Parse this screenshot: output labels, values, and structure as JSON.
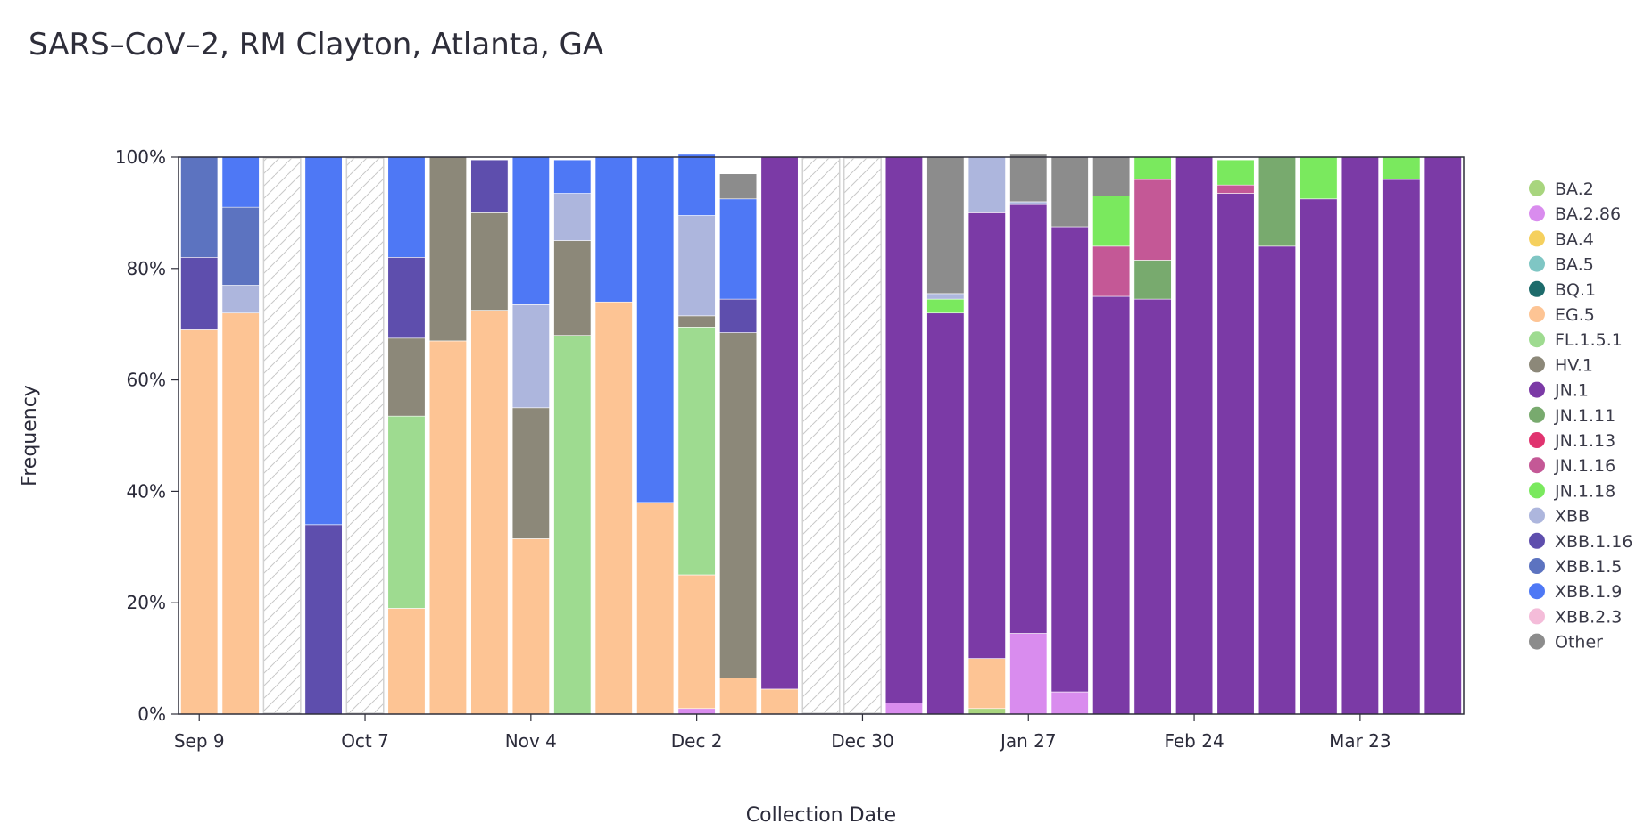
{
  "chart_data": {
    "type": "bar",
    "stacked": true,
    "normalized": true,
    "title": "SARS–CoV–2, RM Clayton, Atlanta, GA",
    "xlabel": "Collection Date",
    "ylabel": "Frequency",
    "ylim": [
      0,
      100
    ],
    "y_ticks": [
      "0%",
      "20%",
      "40%",
      "60%",
      "80%",
      "100%"
    ],
    "x_ticks": [
      "Sep 9",
      "Oct 7",
      "Nov 4",
      "Dec 2",
      "Dec 30",
      "Jan 27",
      "Feb 24",
      "Mar 23"
    ],
    "legend_position": "right",
    "grid": false,
    "categories": [
      "Sep 9",
      "Sep 16",
      "Sep 23",
      "Sep 30",
      "Oct 7",
      "Oct 14",
      "Oct 21",
      "Oct 28",
      "Nov 4",
      "Nov 11",
      "Nov 18",
      "Nov 25",
      "Dec 2",
      "Dec 9",
      "Dec 16",
      "Dec 23",
      "Dec 30",
      "Jan 6",
      "Jan 13",
      "Jan 20",
      "Jan 27",
      "Feb 3",
      "Feb 10",
      "Feb 17",
      "Feb 24",
      "Mar 2",
      "Mar 9",
      "Mar 16",
      "Mar 23",
      "Mar 30",
      "Apr 6"
    ],
    "missing_weeks": [
      "Sep 23",
      "Oct 7",
      "Dec 23",
      "Dec 30"
    ],
    "series": [
      {
        "name": "BA.2",
        "color": "#a8d57e",
        "values": [
          0,
          0,
          0,
          0,
          0,
          0,
          0,
          0,
          0,
          0,
          0,
          0,
          0,
          0,
          0,
          0,
          0,
          0,
          0,
          1,
          0,
          0,
          0,
          0,
          0,
          0,
          0,
          0,
          0,
          0,
          0
        ]
      },
      {
        "name": "BA.2.86",
        "color": "#d98cee",
        "values": [
          0,
          0,
          0,
          0,
          0,
          0,
          0,
          0,
          0,
          0,
          0,
          0,
          1,
          0,
          0,
          0,
          0,
          2,
          0,
          0,
          14.5,
          4,
          0,
          0,
          0,
          0,
          0,
          0,
          0,
          0,
          0
        ]
      },
      {
        "name": "BA.4",
        "color": "#f5d05e",
        "values": [
          0,
          0,
          0,
          0,
          0,
          0,
          0,
          0,
          0,
          0,
          0,
          0,
          0,
          0,
          0,
          0,
          0,
          0,
          0,
          0,
          0,
          0,
          0,
          0,
          0,
          0,
          0,
          0,
          0,
          0,
          0
        ]
      },
      {
        "name": "BA.5",
        "color": "#7fc6c4",
        "values": [
          0,
          0,
          0,
          0,
          0,
          0,
          0,
          0,
          0,
          0,
          0,
          0,
          0,
          0,
          0,
          0,
          0,
          0,
          0,
          0,
          0,
          0,
          0,
          0,
          0,
          0,
          0,
          0,
          0,
          0,
          0
        ]
      },
      {
        "name": "BQ.1",
        "color": "#1d6b6b",
        "values": [
          0,
          0,
          0,
          0,
          0,
          0,
          0,
          0,
          0,
          0,
          0,
          0,
          0,
          0,
          0,
          0,
          0,
          0,
          0,
          0,
          0,
          0,
          0,
          0,
          0,
          0,
          0,
          0,
          0,
          0,
          0
        ]
      },
      {
        "name": "EG.5",
        "color": "#fdc494",
        "values": [
          69,
          72,
          0,
          0,
          0,
          19,
          67,
          72.5,
          31.5,
          0,
          74,
          38,
          24,
          6.5,
          4.5,
          0,
          0,
          0,
          0,
          9,
          0,
          0,
          0,
          0,
          0,
          0,
          0,
          0,
          0,
          0,
          0
        ]
      },
      {
        "name": "FL.1.5.1",
        "color": "#9edb90",
        "values": [
          0,
          0,
          0,
          0,
          0,
          34.5,
          0,
          0,
          0,
          68,
          0,
          0,
          44.5,
          0,
          0,
          0,
          0,
          0,
          0,
          0,
          0,
          0,
          0,
          0,
          0,
          0,
          0,
          0,
          0,
          0,
          0
        ]
      },
      {
        "name": "HV.1",
        "color": "#8c8879",
        "values": [
          0,
          0,
          0,
          0,
          0,
          14,
          33,
          17.5,
          23.5,
          17,
          0,
          0,
          2,
          62,
          0,
          0,
          0,
          0,
          0,
          0,
          0,
          0,
          0,
          0,
          0,
          0,
          0,
          0,
          0,
          0,
          0
        ]
      },
      {
        "name": "JN.1",
        "color": "#7b3aa6",
        "values": [
          0,
          0,
          0,
          0,
          0,
          0,
          0,
          0,
          0,
          0,
          0,
          0,
          0,
          0,
          95.5,
          0,
          0,
          98,
          72,
          80,
          77,
          83.5,
          75,
          74.5,
          100,
          93.5,
          84,
          92.5,
          100,
          96,
          100
        ]
      },
      {
        "name": "JN.1.11",
        "color": "#78aa6e",
        "values": [
          0,
          0,
          0,
          0,
          0,
          0,
          0,
          0,
          0,
          0,
          0,
          0,
          0,
          0,
          0,
          0,
          0,
          0,
          0,
          0,
          0,
          0,
          0,
          7,
          0,
          0,
          16,
          0,
          0,
          0,
          0
        ]
      },
      {
        "name": "JN.1.13",
        "color": "#e0336f",
        "values": [
          0,
          0,
          0,
          0,
          0,
          0,
          0,
          0,
          0,
          0,
          0,
          0,
          0,
          0,
          0,
          0,
          0,
          0,
          0,
          0,
          0,
          0,
          0,
          0,
          0,
          0,
          0,
          0,
          0,
          0,
          0
        ]
      },
      {
        "name": "JN.1.16",
        "color": "#c45896",
        "values": [
          0,
          0,
          0,
          0,
          0,
          0,
          0,
          0,
          0,
          0,
          0,
          0,
          0,
          0,
          0,
          0,
          0,
          0,
          0,
          0,
          0,
          0,
          9,
          14.5,
          0,
          1.5,
          0,
          0,
          0,
          0,
          0
        ]
      },
      {
        "name": "JN.1.18",
        "color": "#7ae95e",
        "values": [
          0,
          0,
          0,
          0,
          0,
          0,
          0,
          0,
          0,
          0,
          0,
          0,
          0,
          0,
          0,
          0,
          0,
          0,
          2.5,
          0,
          0,
          0,
          9,
          4,
          0,
          4.5,
          0,
          7.5,
          0,
          4,
          0
        ]
      },
      {
        "name": "XBB",
        "color": "#adb6dd",
        "values": [
          0,
          5,
          0,
          0,
          0,
          0,
          0,
          0,
          18.5,
          8.5,
          0,
          0,
          18,
          0,
          0,
          0,
          0,
          0,
          1,
          10,
          0.5,
          0,
          0,
          0,
          0,
          0,
          0,
          0,
          0,
          0,
          0
        ]
      },
      {
        "name": "XBB.1.16",
        "color": "#5e4ead",
        "values": [
          13,
          0,
          0,
          34,
          0,
          14.5,
          0,
          9.5,
          0,
          0,
          0,
          0,
          0,
          6,
          0,
          0,
          0,
          0,
          0,
          0,
          0,
          0,
          0,
          0,
          0,
          0,
          0,
          0,
          0,
          0,
          0
        ]
      },
      {
        "name": "XBB.1.5",
        "color": "#5c73c0",
        "values": [
          18,
          14,
          0,
          0,
          0,
          0,
          0,
          0,
          0,
          0,
          0,
          0,
          0,
          0,
          0,
          0,
          0,
          0,
          0,
          0,
          0,
          0,
          0,
          0,
          0,
          0,
          0,
          0,
          0,
          0,
          0
        ]
      },
      {
        "name": "XBB.1.9",
        "color": "#4e78f5",
        "values": [
          0,
          9,
          0,
          66,
          0,
          18,
          0,
          0,
          26.5,
          6,
          26,
          62,
          11,
          18,
          0,
          0,
          0,
          0,
          0,
          0,
          0,
          0,
          0,
          0,
          0,
          0,
          0,
          0,
          0,
          0,
          0
        ]
      },
      {
        "name": "XBB.2.3",
        "color": "#f4bcd9",
        "values": [
          0,
          0,
          0,
          0,
          0,
          0,
          0,
          0,
          0,
          0,
          0,
          0,
          0,
          0,
          0,
          0,
          0,
          0,
          0,
          0,
          0,
          0,
          0,
          0,
          0,
          0,
          0,
          0,
          0,
          0,
          0
        ]
      },
      {
        "name": "Other",
        "color": "#8c8c8c",
        "values": [
          0,
          0,
          0,
          0,
          0,
          0,
          0,
          0,
          0,
          0,
          0,
          0,
          0,
          4.5,
          0,
          0,
          0,
          0,
          24.5,
          0,
          8.5,
          12.5,
          7,
          0,
          0,
          0,
          0,
          0,
          0,
          0,
          0
        ]
      }
    ]
  }
}
